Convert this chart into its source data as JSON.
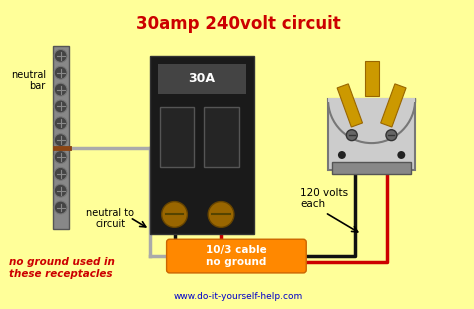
{
  "bg_color": "#FFFF99",
  "title": "30amp 240volt circuit",
  "title_color": "#CC0000",
  "title_fontsize": 12,
  "subtitle": "www.do-it-yourself-help.com",
  "subtitle_color": "#0000CC",
  "label_neutral_bar": "neutral\nbar",
  "label_neutral_circuit": "neutral to\ncircuit",
  "label_no_ground": "no ground used in\nthese receptacles",
  "label_no_ground_color": "#CC0000",
  "label_120v": "120 volts\neach",
  "label_cable": "10/3 cable\nno ground",
  "label_cable_color": "#FFFFFF",
  "cable_box_color": "#FF8800",
  "breaker_label": "30A",
  "wire_black": "#111111",
  "wire_red": "#CC0000",
  "wire_white": "#AAAAAA",
  "neutral_bar_color": "#888888",
  "breaker_body_color": "#1a1a1a",
  "outlet_body_color": "#CCCCCC",
  "outlet_prong_color": "#CC9900",
  "screw_color": "#996600"
}
